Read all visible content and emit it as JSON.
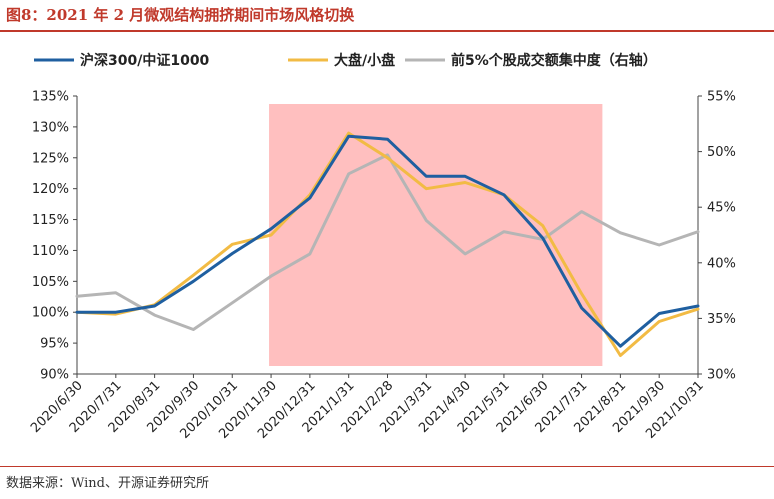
{
  "figure": {
    "title": "图8：2021 年 2 月微观结构拥挤期间市场风格切换",
    "source": "数据来源：Wind、开源证券研究所"
  },
  "chart_data": {
    "type": "line",
    "categories": [
      "2020/6/30",
      "2020/7/31",
      "2020/8/31",
      "2020/9/30",
      "2020/10/31",
      "2020/11/30",
      "2020/12/31",
      "2021/1/31",
      "2021/2/28",
      "2021/3/31",
      "2021/4/30",
      "2021/5/31",
      "2021/6/30",
      "2021/7/31",
      "2021/8/31",
      "2021/9/30",
      "2021/10/31"
    ],
    "y_left": {
      "min": 90,
      "max": 135,
      "ticks": [
        "90%",
        "95%",
        "100%",
        "105%",
        "110%",
        "115%",
        "120%",
        "125%",
        "130%",
        "135%"
      ]
    },
    "y_right": {
      "min": 30,
      "max": 55,
      "ticks": [
        "30%",
        "35%",
        "40%",
        "45%",
        "50%",
        "55%"
      ]
    },
    "shaded_region": {
      "from": "2020/11/30",
      "to": "2021/8/31",
      "color": "#ffbfbf"
    },
    "legend_position": "top",
    "grid": false,
    "series": [
      {
        "name": "沪深300/中证1000",
        "axis": "left",
        "color": "#1f5fa0",
        "values": [
          100,
          100,
          101,
          105,
          109.5,
          113.5,
          118.5,
          128.5,
          128,
          122,
          122,
          119,
          112,
          100.7,
          94.5,
          99.8,
          101
        ]
      },
      {
        "name": "大盘/小盘",
        "axis": "left",
        "color": "#f2bb44",
        "values": [
          100,
          99.7,
          101.2,
          106,
          111,
          112.5,
          119,
          129,
          125,
          120,
          121,
          119,
          114,
          103,
          93,
          98.5,
          100.5
        ]
      },
      {
        "name": "前5%个股成交额集中度（右轴）",
        "axis": "right",
        "color": "#b5b5b5",
        "values": [
          37,
          37.3,
          35.3,
          34,
          36.4,
          38.8,
          40.8,
          48,
          49.7,
          43.8,
          40.8,
          42.8,
          42.1,
          44.6,
          42.7,
          41.6,
          42.8
        ]
      }
    ]
  }
}
